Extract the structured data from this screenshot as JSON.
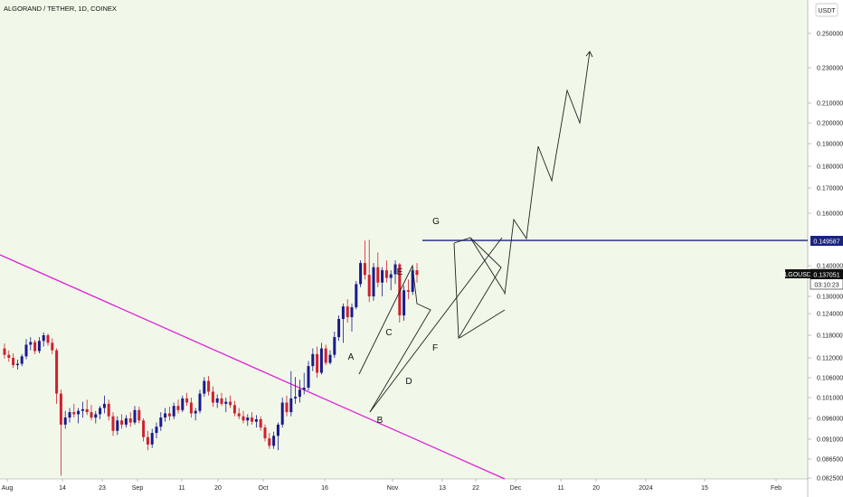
{
  "title": "ALGORAND / TETHER, 1D, COINEX",
  "currency": "USDT",
  "colors": {
    "background": "#f1f8e9",
    "up": "#1a1a8c",
    "down": "#d0202f",
    "trendline": "#e020d8",
    "resistance": "#1a237e",
    "drawing": "#222222"
  },
  "chart_data": {
    "type": "candlestick",
    "symbol": "ALGOUSDT",
    "last_price": "0.137051",
    "countdown": "03:10:23",
    "resistance_level": "0.149587",
    "ylim": [
      0.0825,
      0.2605
    ],
    "y_ticks": [
      "0.250000",
      "0.230000",
      "0.210000",
      "0.200000",
      "0.190000",
      "0.180000",
      "0.170000",
      "0.160000",
      "0.140000",
      "0.130000",
      "0.124000",
      "0.118000",
      "0.112000",
      "0.106000",
      "0.101000",
      "0.096000",
      "0.091000",
      "0.086500",
      "0.082500"
    ],
    "x_ticks": [
      "Aug",
      "14",
      "23",
      "Sep",
      "11",
      "20",
      "Oct",
      "16",
      "Nov",
      "13",
      "22",
      "Dec",
      "11",
      "20",
      "2024",
      "15",
      "Feb"
    ],
    "wave_labels": [
      "A",
      "B",
      "C",
      "D",
      "E",
      "F",
      "G"
    ],
    "candles": [
      {
        "o": 0.1145,
        "h": 0.1158,
        "l": 0.1118,
        "c": 0.1128
      },
      {
        "o": 0.1128,
        "h": 0.114,
        "l": 0.1108,
        "c": 0.112
      },
      {
        "o": 0.112,
        "h": 0.1132,
        "l": 0.109,
        "c": 0.1098
      },
      {
        "o": 0.1098,
        "h": 0.1115,
        "l": 0.1085,
        "c": 0.1102
      },
      {
        "o": 0.1102,
        "h": 0.113,
        "l": 0.1095,
        "c": 0.1124
      },
      {
        "o": 0.1124,
        "h": 0.117,
        "l": 0.1116,
        "c": 0.1155
      },
      {
        "o": 0.1155,
        "h": 0.1175,
        "l": 0.114,
        "c": 0.1162
      },
      {
        "o": 0.1162,
        "h": 0.1168,
        "l": 0.113,
        "c": 0.1138
      },
      {
        "o": 0.1138,
        "h": 0.1175,
        "l": 0.1132,
        "c": 0.1165
      },
      {
        "o": 0.1165,
        "h": 0.1188,
        "l": 0.115,
        "c": 0.118
      },
      {
        "o": 0.118,
        "h": 0.1185,
        "l": 0.1152,
        "c": 0.116
      },
      {
        "o": 0.116,
        "h": 0.1172,
        "l": 0.113,
        "c": 0.114
      },
      {
        "o": 0.114,
        "h": 0.1145,
        "l": 0.0995,
        "c": 0.102
      },
      {
        "o": 0.102,
        "h": 0.103,
        "l": 0.083,
        "c": 0.0945
      },
      {
        "o": 0.0945,
        "h": 0.0978,
        "l": 0.0935,
        "c": 0.0962
      },
      {
        "o": 0.0962,
        "h": 0.0985,
        "l": 0.095,
        "c": 0.0975
      },
      {
        "o": 0.0975,
        "h": 0.0995,
        "l": 0.0962,
        "c": 0.097
      },
      {
        "o": 0.097,
        "h": 0.0985,
        "l": 0.0948,
        "c": 0.0978
      },
      {
        "o": 0.0978,
        "h": 0.1,
        "l": 0.0962,
        "c": 0.0982
      },
      {
        "o": 0.0982,
        "h": 0.1005,
        "l": 0.0968,
        "c": 0.0975
      },
      {
        "o": 0.0975,
        "h": 0.0992,
        "l": 0.0955,
        "c": 0.0962
      },
      {
        "o": 0.0962,
        "h": 0.0978,
        "l": 0.0948,
        "c": 0.097
      },
      {
        "o": 0.097,
        "h": 0.099,
        "l": 0.0958,
        "c": 0.0985
      },
      {
        "o": 0.0985,
        "h": 0.1015,
        "l": 0.0972,
        "c": 0.0995
      },
      {
        "o": 0.0995,
        "h": 0.1005,
        "l": 0.0955,
        "c": 0.0965
      },
      {
        "o": 0.0965,
        "h": 0.0975,
        "l": 0.0918,
        "c": 0.093
      },
      {
        "o": 0.093,
        "h": 0.0965,
        "l": 0.092,
        "c": 0.0955
      },
      {
        "o": 0.0955,
        "h": 0.097,
        "l": 0.0935,
        "c": 0.0945
      },
      {
        "o": 0.0945,
        "h": 0.0968,
        "l": 0.0938,
        "c": 0.096
      },
      {
        "o": 0.096,
        "h": 0.0975,
        "l": 0.094,
        "c": 0.095
      },
      {
        "o": 0.095,
        "h": 0.099,
        "l": 0.0945,
        "c": 0.098
      },
      {
        "o": 0.098,
        "h": 0.0988,
        "l": 0.0948,
        "c": 0.0955
      },
      {
        "o": 0.0955,
        "h": 0.096,
        "l": 0.0905,
        "c": 0.0915
      },
      {
        "o": 0.0915,
        "h": 0.093,
        "l": 0.0885,
        "c": 0.0898
      },
      {
        "o": 0.0898,
        "h": 0.0935,
        "l": 0.089,
        "c": 0.0925
      },
      {
        "o": 0.0925,
        "h": 0.095,
        "l": 0.0912,
        "c": 0.094
      },
      {
        "o": 0.094,
        "h": 0.0975,
        "l": 0.093,
        "c": 0.0962
      },
      {
        "o": 0.0962,
        "h": 0.0985,
        "l": 0.0952,
        "c": 0.0972
      },
      {
        "o": 0.0972,
        "h": 0.0988,
        "l": 0.0955,
        "c": 0.0965
      },
      {
        "o": 0.0965,
        "h": 0.0998,
        "l": 0.0958,
        "c": 0.099
      },
      {
        "o": 0.099,
        "h": 0.1005,
        "l": 0.0972,
        "c": 0.098
      },
      {
        "o": 0.098,
        "h": 0.1015,
        "l": 0.0975,
        "c": 0.1008
      },
      {
        "o": 0.1008,
        "h": 0.1022,
        "l": 0.099,
        "c": 0.0998
      },
      {
        "o": 0.0998,
        "h": 0.101,
        "l": 0.0962,
        "c": 0.0972
      },
      {
        "o": 0.0972,
        "h": 0.0985,
        "l": 0.0955,
        "c": 0.0978
      },
      {
        "o": 0.0978,
        "h": 0.103,
        "l": 0.0972,
        "c": 0.102
      },
      {
        "o": 0.102,
        "h": 0.1062,
        "l": 0.1012,
        "c": 0.1052
      },
      {
        "o": 0.1052,
        "h": 0.1065,
        "l": 0.1015,
        "c": 0.1025
      },
      {
        "o": 0.1025,
        "h": 0.1038,
        "l": 0.0988,
        "c": 0.0998
      },
      {
        "o": 0.0998,
        "h": 0.1018,
        "l": 0.0985,
        "c": 0.1008
      },
      {
        "o": 0.1008,
        "h": 0.1022,
        "l": 0.099,
        "c": 0.0995
      },
      {
        "o": 0.0995,
        "h": 0.101,
        "l": 0.0975,
        "c": 0.1
      },
      {
        "o": 0.1,
        "h": 0.1015,
        "l": 0.0985,
        "c": 0.0992
      },
      {
        "o": 0.0992,
        "h": 0.1002,
        "l": 0.0965,
        "c": 0.0972
      },
      {
        "o": 0.0972,
        "h": 0.0985,
        "l": 0.0958,
        "c": 0.0965
      },
      {
        "o": 0.0965,
        "h": 0.0978,
        "l": 0.0948,
        "c": 0.0955
      },
      {
        "o": 0.0955,
        "h": 0.097,
        "l": 0.0942,
        "c": 0.0962
      },
      {
        "o": 0.0962,
        "h": 0.0975,
        "l": 0.0945,
        "c": 0.0952
      },
      {
        "o": 0.0952,
        "h": 0.0968,
        "l": 0.0938,
        "c": 0.0958
      },
      {
        "o": 0.0958,
        "h": 0.0965,
        "l": 0.093,
        "c": 0.0938
      },
      {
        "o": 0.0938,
        "h": 0.0945,
        "l": 0.0905,
        "c": 0.0912
      },
      {
        "o": 0.0912,
        "h": 0.0925,
        "l": 0.0888,
        "c": 0.0895
      },
      {
        "o": 0.0895,
        "h": 0.0928,
        "l": 0.0888,
        "c": 0.0918
      },
      {
        "o": 0.0918,
        "h": 0.095,
        "l": 0.0885,
        "c": 0.0945
      },
      {
        "o": 0.0945,
        "h": 0.101,
        "l": 0.0938,
        "c": 0.0998
      },
      {
        "o": 0.0998,
        "h": 0.1015,
        "l": 0.0965,
        "c": 0.0975
      },
      {
        "o": 0.0975,
        "h": 0.108,
        "l": 0.0965,
        "c": 0.1008
      },
      {
        "o": 0.1008,
        "h": 0.1062,
        "l": 0.0995,
        "c": 0.1012
      },
      {
        "o": 0.1012,
        "h": 0.1055,
        "l": 0.0998,
        "c": 0.103
      },
      {
        "o": 0.103,
        "h": 0.1075,
        "l": 0.1018,
        "c": 0.1035
      },
      {
        "o": 0.1035,
        "h": 0.111,
        "l": 0.1028,
        "c": 0.1095
      },
      {
        "o": 0.1095,
        "h": 0.1145,
        "l": 0.108,
        "c": 0.113
      },
      {
        "o": 0.113,
        "h": 0.115,
        "l": 0.106,
        "c": 0.1075
      },
      {
        "o": 0.1075,
        "h": 0.116,
        "l": 0.107,
        "c": 0.1145
      },
      {
        "o": 0.1145,
        "h": 0.1155,
        "l": 0.1098,
        "c": 0.1105
      },
      {
        "o": 0.1105,
        "h": 0.114,
        "l": 0.11,
        "c": 0.1128
      },
      {
        "o": 0.1128,
        "h": 0.119,
        "l": 0.112,
        "c": 0.1175
      },
      {
        "o": 0.1175,
        "h": 0.1235,
        "l": 0.1165,
        "c": 0.1225
      },
      {
        "o": 0.1225,
        "h": 0.1275,
        "l": 0.116,
        "c": 0.1265
      },
      {
        "o": 0.1265,
        "h": 0.129,
        "l": 0.1215,
        "c": 0.123
      },
      {
        "o": 0.123,
        "h": 0.1275,
        "l": 0.119,
        "c": 0.1262
      },
      {
        "o": 0.1262,
        "h": 0.135,
        "l": 0.1255,
        "c": 0.134
      },
      {
        "o": 0.134,
        "h": 0.142,
        "l": 0.133,
        "c": 0.141
      },
      {
        "o": 0.141,
        "h": 0.1495,
        "l": 0.1355,
        "c": 0.137
      },
      {
        "o": 0.137,
        "h": 0.1498,
        "l": 0.128,
        "c": 0.13
      },
      {
        "o": 0.13,
        "h": 0.141,
        "l": 0.1285,
        "c": 0.1395
      },
      {
        "o": 0.1395,
        "h": 0.145,
        "l": 0.133,
        "c": 0.1345
      },
      {
        "o": 0.1345,
        "h": 0.1395,
        "l": 0.13,
        "c": 0.1385
      },
      {
        "o": 0.1385,
        "h": 0.142,
        "l": 0.1345,
        "c": 0.136
      },
      {
        "o": 0.136,
        "h": 0.1385,
        "l": 0.132,
        "c": 0.1372
      },
      {
        "o": 0.1372,
        "h": 0.142,
        "l": 0.134,
        "c": 0.1405
      },
      {
        "o": 0.1405,
        "h": 0.141,
        "l": 0.1215,
        "c": 0.1235
      },
      {
        "o": 0.1235,
        "h": 0.1335,
        "l": 0.122,
        "c": 0.132
      },
      {
        "o": 0.132,
        "h": 0.1355,
        "l": 0.129,
        "c": 0.1315
      },
      {
        "o": 0.1315,
        "h": 0.1395,
        "l": 0.1305,
        "c": 0.1385
      },
      {
        "o": 0.1385,
        "h": 0.141,
        "l": 0.1345,
        "c": 0.137
      }
    ]
  }
}
